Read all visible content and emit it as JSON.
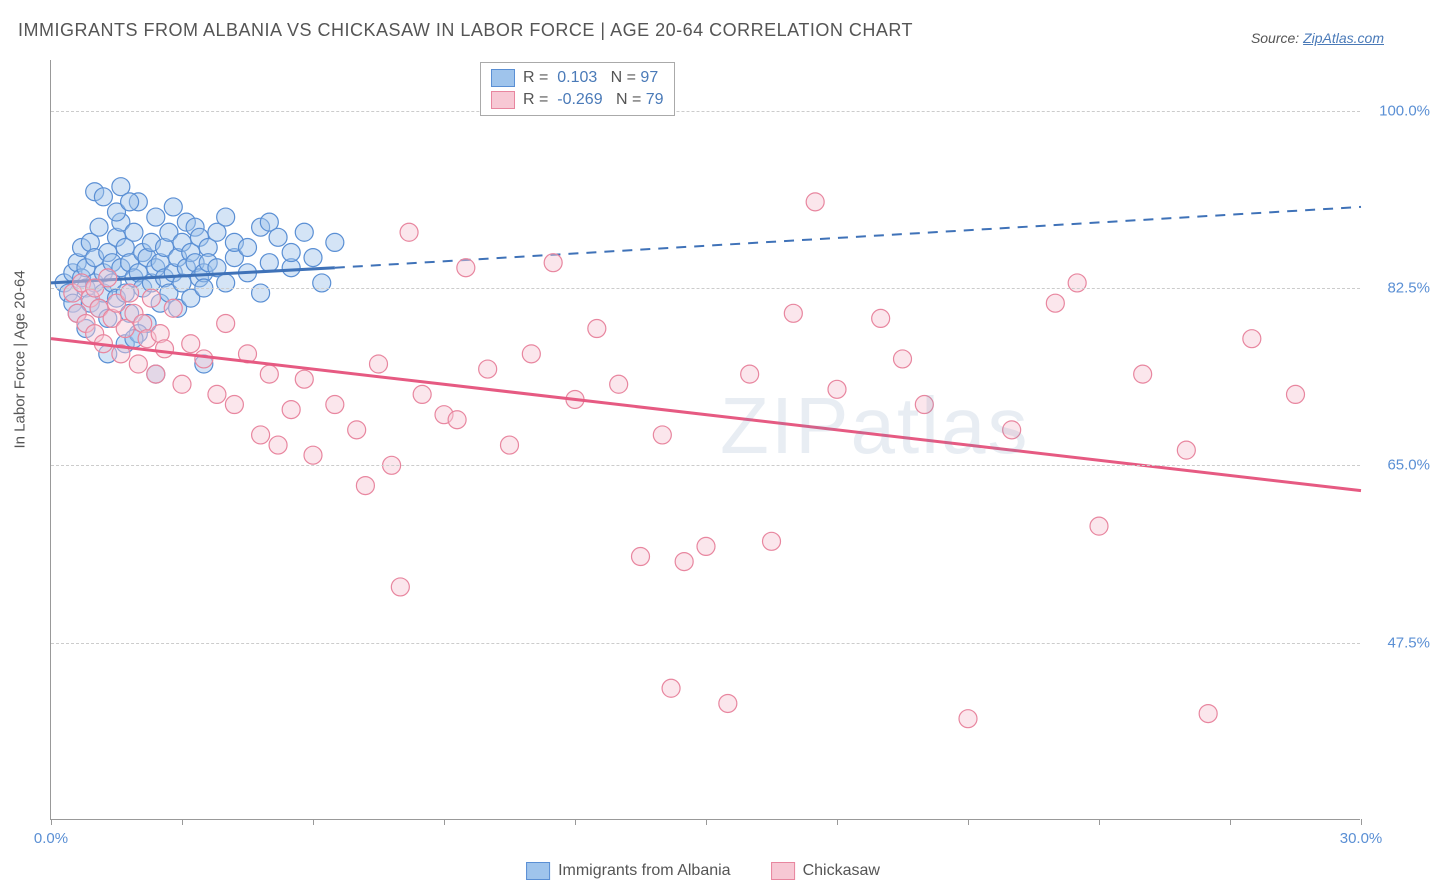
{
  "title": "IMMIGRANTS FROM ALBANIA VS CHICKASAW IN LABOR FORCE | AGE 20-64 CORRELATION CHART",
  "title_color": "#555555",
  "source_label": "Source:",
  "source_name": "ZipAtlas.com",
  "source_color": "#555555",
  "source_link_color": "#4a7ab8",
  "ylabel": "In Labor Force | Age 20-64",
  "watermark": "ZIPatlas",
  "chart": {
    "type": "scatter",
    "xlim": [
      0,
      30
    ],
    "ylim": [
      30,
      105
    ],
    "y_ticks": [
      47.5,
      65.0,
      82.5,
      100.0
    ],
    "y_tick_labels": [
      "47.5%",
      "65.0%",
      "82.5%",
      "100.0%"
    ],
    "x_ticks": [
      0,
      3,
      6,
      9,
      12,
      15,
      18,
      21,
      24,
      27,
      30
    ],
    "x_tick_labels_shown": {
      "0": "0.0%",
      "30": "30.0%"
    },
    "tick_color": "#5a8fd4",
    "grid_color": "#cccccc",
    "axis_color": "#999999",
    "background": "#ffffff",
    "marker_radius": 9,
    "marker_opacity": 0.45,
    "series": [
      {
        "name": "Immigrants from Albania",
        "fill": "#9fc4ec",
        "stroke": "#5a8fd4",
        "line_color": "#3f72b8",
        "R": "0.103",
        "N": "97",
        "trend": {
          "x1": 0,
          "y1": 83.0,
          "x2": 6.5,
          "y2": 84.5,
          "x2_ext": 30,
          "y2_ext": 90.5
        },
        "points": [
          [
            0.3,
            83
          ],
          [
            0.4,
            82
          ],
          [
            0.5,
            84
          ],
          [
            0.5,
            81
          ],
          [
            0.6,
            85
          ],
          [
            0.6,
            80
          ],
          [
            0.7,
            83.5
          ],
          [
            0.7,
            86.5
          ],
          [
            0.8,
            82.5
          ],
          [
            0.8,
            84.5
          ],
          [
            0.9,
            81
          ],
          [
            0.9,
            87
          ],
          [
            1.0,
            83
          ],
          [
            1.0,
            85.5
          ],
          [
            1.1,
            80.5
          ],
          [
            1.1,
            88.5
          ],
          [
            1.2,
            84
          ],
          [
            1.2,
            82
          ],
          [
            1.3,
            86
          ],
          [
            1.3,
            79.5
          ],
          [
            1.4,
            85
          ],
          [
            1.4,
            83
          ],
          [
            1.5,
            87.5
          ],
          [
            1.5,
            81.5
          ],
          [
            1.6,
            84.5
          ],
          [
            1.6,
            89
          ],
          [
            1.7,
            82
          ],
          [
            1.7,
            86.5
          ],
          [
            1.8,
            85
          ],
          [
            1.8,
            80
          ],
          [
            1.9,
            88
          ],
          [
            1.9,
            83.5
          ],
          [
            2.0,
            84
          ],
          [
            2.0,
            91
          ],
          [
            2.1,
            82.5
          ],
          [
            2.1,
            86
          ],
          [
            2.2,
            85.5
          ],
          [
            2.2,
            79
          ],
          [
            2.3,
            87
          ],
          [
            2.3,
            83
          ],
          [
            2.4,
            84.5
          ],
          [
            2.4,
            89.5
          ],
          [
            2.5,
            81
          ],
          [
            2.5,
            85
          ],
          [
            2.6,
            86.5
          ],
          [
            2.6,
            83.5
          ],
          [
            2.7,
            88
          ],
          [
            2.7,
            82
          ],
          [
            2.8,
            84
          ],
          [
            2.8,
            90.5
          ],
          [
            2.9,
            85.5
          ],
          [
            2.9,
            80.5
          ],
          [
            3.0,
            87
          ],
          [
            3.0,
            83
          ],
          [
            3.1,
            84.5
          ],
          [
            3.1,
            89
          ],
          [
            3.2,
            86
          ],
          [
            3.2,
            81.5
          ],
          [
            3.3,
            85
          ],
          [
            3.3,
            88.5
          ],
          [
            3.4,
            83.5
          ],
          [
            3.4,
            87.5
          ],
          [
            3.5,
            84
          ],
          [
            3.5,
            82.5
          ],
          [
            3.6,
            86.5
          ],
          [
            3.6,
            85
          ],
          [
            3.8,
            88
          ],
          [
            3.8,
            84.5
          ],
          [
            4.0,
            89.5
          ],
          [
            4.0,
            83
          ],
          [
            4.2,
            85.5
          ],
          [
            4.2,
            87
          ],
          [
            4.5,
            84
          ],
          [
            4.5,
            86.5
          ],
          [
            4.8,
            88.5
          ],
          [
            4.8,
            82
          ],
          [
            5.0,
            85
          ],
          [
            5.0,
            89
          ],
          [
            5.2,
            87.5
          ],
          [
            5.5,
            84.5
          ],
          [
            5.5,
            86
          ],
          [
            5.8,
            88
          ],
          [
            6.0,
            85.5
          ],
          [
            6.2,
            83
          ],
          [
            6.5,
            87
          ],
          [
            1.0,
            92
          ],
          [
            1.2,
            91.5
          ],
          [
            1.5,
            90
          ],
          [
            1.7,
            77
          ],
          [
            2.0,
            78
          ],
          [
            1.3,
            76
          ],
          [
            0.8,
            78.5
          ],
          [
            2.4,
            74
          ],
          [
            1.9,
            77.5
          ],
          [
            3.5,
            75
          ],
          [
            1.6,
            92.5
          ],
          [
            1.8,
            91
          ]
        ]
      },
      {
        "name": "Chickasaw",
        "fill": "#f7c8d4",
        "stroke": "#e8869f",
        "line_color": "#e65a82",
        "R": "-0.269",
        "N": "79",
        "trend": {
          "x1": 0,
          "y1": 77.5,
          "x2": 30,
          "y2": 62.5
        },
        "points": [
          [
            0.5,
            82
          ],
          [
            0.6,
            80
          ],
          [
            0.7,
            83
          ],
          [
            0.8,
            79
          ],
          [
            0.9,
            81.5
          ],
          [
            1.0,
            78
          ],
          [
            1.0,
            82.5
          ],
          [
            1.1,
            80.5
          ],
          [
            1.2,
            77
          ],
          [
            1.3,
            83.5
          ],
          [
            1.4,
            79.5
          ],
          [
            1.5,
            81
          ],
          [
            1.6,
            76
          ],
          [
            1.7,
            78.5
          ],
          [
            1.8,
            82
          ],
          [
            1.9,
            80
          ],
          [
            2.0,
            75
          ],
          [
            2.1,
            79
          ],
          [
            2.2,
            77.5
          ],
          [
            2.3,
            81.5
          ],
          [
            2.4,
            74
          ],
          [
            2.5,
            78
          ],
          [
            2.6,
            76.5
          ],
          [
            2.8,
            80.5
          ],
          [
            3.0,
            73
          ],
          [
            3.2,
            77
          ],
          [
            3.5,
            75.5
          ],
          [
            3.8,
            72
          ],
          [
            4.0,
            79
          ],
          [
            4.2,
            71
          ],
          [
            4.5,
            76
          ],
          [
            4.8,
            68
          ],
          [
            5.0,
            74
          ],
          [
            5.2,
            67
          ],
          [
            5.5,
            70.5
          ],
          [
            5.8,
            73.5
          ],
          [
            6.0,
            66
          ],
          [
            6.5,
            71
          ],
          [
            7.0,
            68.5
          ],
          [
            7.2,
            63
          ],
          [
            7.5,
            75
          ],
          [
            7.8,
            65
          ],
          [
            8.0,
            53
          ],
          [
            8.2,
            88
          ],
          [
            8.5,
            72
          ],
          [
            9.0,
            70
          ],
          [
            9.3,
            69.5
          ],
          [
            9.5,
            84.5
          ],
          [
            10.0,
            74.5
          ],
          [
            10.5,
            67
          ],
          [
            11.0,
            76
          ],
          [
            11.5,
            85
          ],
          [
            12.0,
            71.5
          ],
          [
            12.5,
            78.5
          ],
          [
            13.0,
            73
          ],
          [
            13.5,
            56
          ],
          [
            14.0,
            68
          ],
          [
            14.5,
            55.5
          ],
          [
            15.0,
            57
          ],
          [
            15.5,
            41.5
          ],
          [
            16.0,
            74
          ],
          [
            16.5,
            57.5
          ],
          [
            17.0,
            80
          ],
          [
            17.5,
            91
          ],
          [
            18.0,
            72.5
          ],
          [
            19.0,
            79.5
          ],
          [
            19.5,
            75.5
          ],
          [
            20.0,
            71
          ],
          [
            21.0,
            40
          ],
          [
            22.0,
            68.5
          ],
          [
            23.0,
            81
          ],
          [
            23.5,
            83
          ],
          [
            24.0,
            59
          ],
          [
            25.0,
            74
          ],
          [
            26.0,
            66.5
          ],
          [
            26.5,
            40.5
          ],
          [
            27.5,
            77.5
          ],
          [
            28.5,
            72
          ],
          [
            14.2,
            43
          ]
        ]
      }
    ]
  },
  "legend_top": {
    "r_label": "R  =",
    "n_label": "N  =",
    "value_color": "#4a7ab8"
  },
  "legend_bottom": {
    "items": [
      "Immigrants from Albania",
      "Chickasaw"
    ]
  }
}
